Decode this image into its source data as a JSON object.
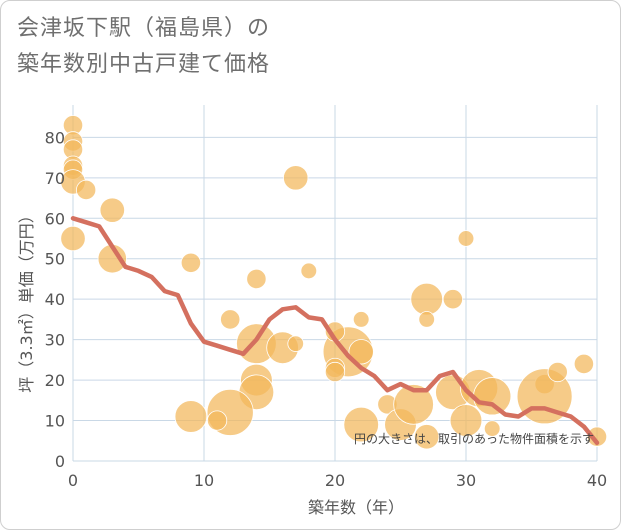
{
  "title": "会津坂下駅（福島県）の\n築年数別中古戸建て価格",
  "chart_data": {
    "type": "scatter",
    "title": "会津坂下駅（福島県）の築年数別中古戸建て価格",
    "xlabel": "築年数（年）",
    "ylabel": "坪（3.3㎡）単価（万円）",
    "xlim": [
      0,
      40
    ],
    "ylim": [
      0,
      88
    ],
    "xticks": [
      "0",
      "10",
      "20",
      "30",
      "40"
    ],
    "yticks": [
      "0",
      "10",
      "20",
      "30",
      "40",
      "50",
      "60",
      "70",
      "80"
    ],
    "grid": true,
    "annotation": "円の大きさは、取引のあった物件面積を示す",
    "colors": {
      "bubble": "#f2b75a",
      "line": "#d4705f",
      "grid": "#c9d8e6"
    },
    "series": [
      {
        "type": "bubble",
        "points": [
          {
            "x": 0,
            "y": 83,
            "size": 1
          },
          {
            "x": 0,
            "y": 79,
            "size": 1
          },
          {
            "x": 0,
            "y": 77,
            "size": 1
          },
          {
            "x": 0,
            "y": 73,
            "size": 1
          },
          {
            "x": 0,
            "y": 72,
            "size": 1
          },
          {
            "x": 0,
            "y": 69,
            "size": 2
          },
          {
            "x": 0,
            "y": 55,
            "size": 2
          },
          {
            "x": 1,
            "y": 67,
            "size": 1
          },
          {
            "x": 3,
            "y": 62,
            "size": 2
          },
          {
            "x": 3,
            "y": 50,
            "size": 3
          },
          {
            "x": 9,
            "y": 49,
            "size": 1
          },
          {
            "x": 14,
            "y": 45,
            "size": 1
          },
          {
            "x": 17,
            "y": 70,
            "size": 2
          },
          {
            "x": 18,
            "y": 47,
            "size": 0.5
          },
          {
            "x": 12,
            "y": 35,
            "size": 1
          },
          {
            "x": 14,
            "y": 29,
            "size": 7
          },
          {
            "x": 16,
            "y": 28,
            "size": 4
          },
          {
            "x": 17,
            "y": 29,
            "size": 0.5
          },
          {
            "x": 14,
            "y": 20,
            "size": 4
          },
          {
            "x": 14,
            "y": 17,
            "size": 5
          },
          {
            "x": 12,
            "y": 12,
            "size": 10
          },
          {
            "x": 9,
            "y": 11,
            "size": 4
          },
          {
            "x": 11,
            "y": 10,
            "size": 1
          },
          {
            "x": 21,
            "y": 27,
            "size": 12
          },
          {
            "x": 20,
            "y": 32,
            "size": 1
          },
          {
            "x": 22,
            "y": 35,
            "size": 0.5
          },
          {
            "x": 22,
            "y": 27,
            "size": 2
          },
          {
            "x": 20,
            "y": 23,
            "size": 1
          },
          {
            "x": 20,
            "y": 22,
            "size": 1
          },
          {
            "x": 22,
            "y": 9,
            "size": 5
          },
          {
            "x": 24,
            "y": 14,
            "size": 1
          },
          {
            "x": 25,
            "y": 9,
            "size": 4
          },
          {
            "x": 26,
            "y": 14,
            "size": 7
          },
          {
            "x": 27,
            "y": 40,
            "size": 4
          },
          {
            "x": 27,
            "y": 35,
            "size": 0.5
          },
          {
            "x": 27,
            "y": 6,
            "size": 2
          },
          {
            "x": 29,
            "y": 40,
            "size": 1
          },
          {
            "x": 29,
            "y": 17,
            "size": 5
          },
          {
            "x": 30,
            "y": 55,
            "size": 0.5
          },
          {
            "x": 30,
            "y": 10,
            "size": 4
          },
          {
            "x": 31,
            "y": 18,
            "size": 6
          },
          {
            "x": 32,
            "y": 16,
            "size": 6
          },
          {
            "x": 32,
            "y": 8,
            "size": 0.5
          },
          {
            "x": 36,
            "y": 19,
            "size": 1
          },
          {
            "x": 36,
            "y": 16,
            "size": 15
          },
          {
            "x": 37,
            "y": 22,
            "size": 1
          },
          {
            "x": 39,
            "y": 24,
            "size": 1
          },
          {
            "x": 40,
            "y": 6,
            "size": 1
          }
        ]
      },
      {
        "type": "line",
        "points": [
          {
            "x": 0,
            "y": 60
          },
          {
            "x": 1,
            "y": 59
          },
          {
            "x": 2,
            "y": 58
          },
          {
            "x": 3,
            "y": 53
          },
          {
            "x": 4,
            "y": 48
          },
          {
            "x": 5,
            "y": 47
          },
          {
            "x": 6,
            "y": 45.5
          },
          {
            "x": 7,
            "y": 42
          },
          {
            "x": 8,
            "y": 41
          },
          {
            "x": 9,
            "y": 34
          },
          {
            "x": 10,
            "y": 29.5
          },
          {
            "x": 11,
            "y": 28.5
          },
          {
            "x": 12,
            "y": 27.5
          },
          {
            "x": 13,
            "y": 26.5
          },
          {
            "x": 14,
            "y": 30
          },
          {
            "x": 15,
            "y": 35
          },
          {
            "x": 16,
            "y": 37.5
          },
          {
            "x": 17,
            "y": 38
          },
          {
            "x": 18,
            "y": 35.5
          },
          {
            "x": 19,
            "y": 35
          },
          {
            "x": 20,
            "y": 30
          },
          {
            "x": 21,
            "y": 26
          },
          {
            "x": 22,
            "y": 23
          },
          {
            "x": 23,
            "y": 21
          },
          {
            "x": 24,
            "y": 17.5
          },
          {
            "x": 25,
            "y": 19
          },
          {
            "x": 26,
            "y": 17.5
          },
          {
            "x": 27,
            "y": 17.5
          },
          {
            "x": 28,
            "y": 21
          },
          {
            "x": 29,
            "y": 22
          },
          {
            "x": 30,
            "y": 17.5
          },
          {
            "x": 31,
            "y": 14.5
          },
          {
            "x": 32,
            "y": 14
          },
          {
            "x": 33,
            "y": 11.5
          },
          {
            "x": 34,
            "y": 11
          },
          {
            "x": 35,
            "y": 13
          },
          {
            "x": 36,
            "y": 13
          },
          {
            "x": 37,
            "y": 12
          },
          {
            "x": 38,
            "y": 11
          },
          {
            "x": 39,
            "y": 8.5
          },
          {
            "x": 40,
            "y": 4.5
          }
        ]
      }
    ]
  }
}
